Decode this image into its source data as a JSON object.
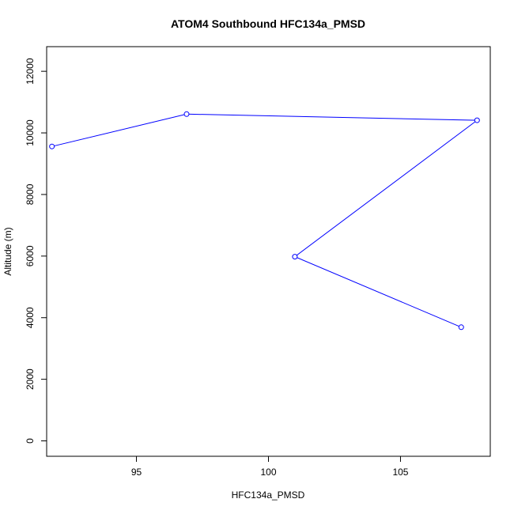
{
  "chart_data": {
    "type": "line",
    "title": "ATOM4 Southbound HFC134a_PMSD",
    "xlabel": "HFC134a_PMSD",
    "ylabel": "Altitude (m)",
    "xlim": [
      91.6,
      108.4
    ],
    "ylim": [
      -500,
      12800
    ],
    "x_ticks": [
      95,
      100,
      105
    ],
    "x_tick_labels": [
      "95",
      "100",
      "105"
    ],
    "y_ticks": [
      0,
      2000,
      4000,
      6000,
      8000,
      10000,
      12000
    ],
    "y_tick_labels": [
      "0",
      "2000",
      "4000",
      "6000",
      "8000",
      "10000",
      "12000"
    ],
    "grid": false,
    "legend": "none",
    "series": [
      {
        "color": "#0000ff",
        "marker": "open-circle",
        "points": [
          {
            "x": 91.8,
            "y": 9560
          },
          {
            "x": 96.9,
            "y": 10610
          },
          {
            "x": 107.9,
            "y": 10410
          },
          {
            "x": 101.0,
            "y": 5980
          },
          {
            "x": 107.3,
            "y": 3690
          }
        ]
      }
    ]
  }
}
